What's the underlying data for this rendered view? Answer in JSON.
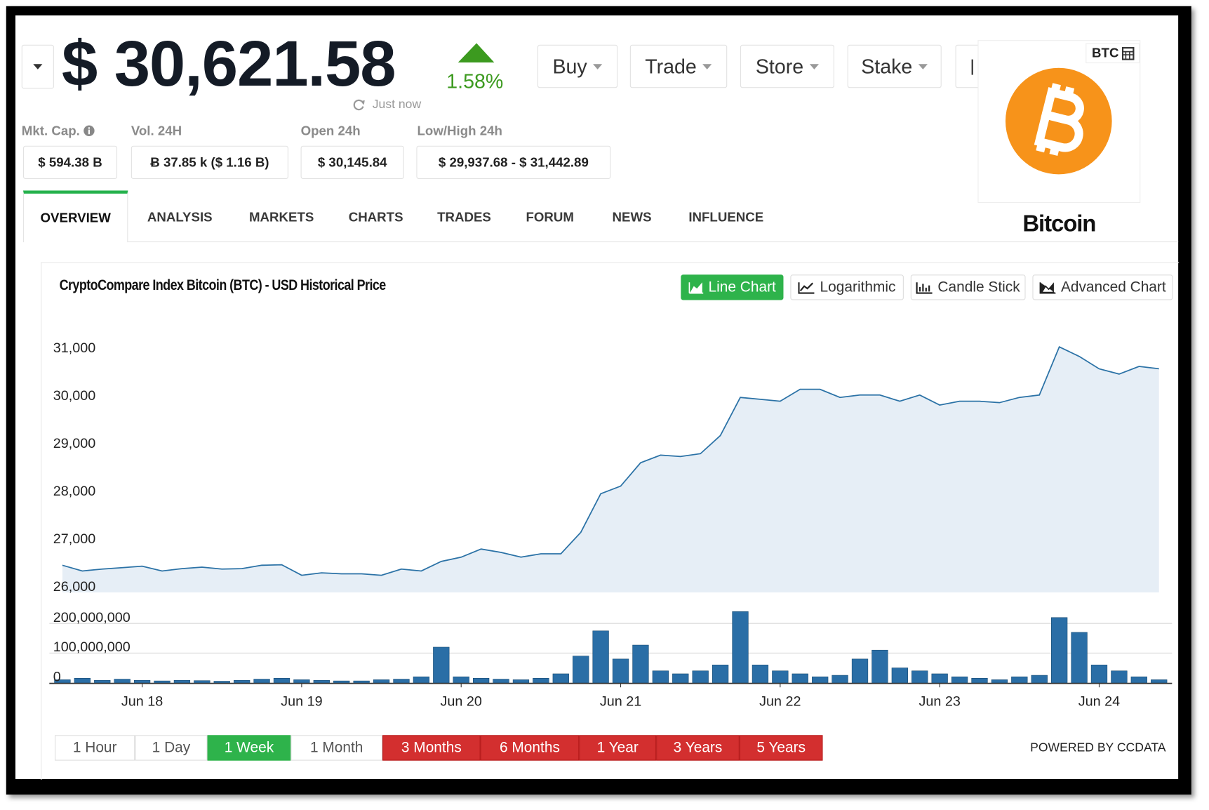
{
  "header": {
    "price": "$ 30,621.58",
    "change": "1.58%",
    "updated": "Just now",
    "actions": [
      "Buy",
      "Trade",
      "Store",
      "Stake"
    ]
  },
  "stats": [
    {
      "label": "Mkt. Cap.",
      "value": "$ 594.38 B"
    },
    {
      "label": "Vol. 24H",
      "value": "Ƀ 37.85 k ($ 1.16 B)"
    },
    {
      "label": "Open 24h",
      "value": "$ 30,145.84"
    },
    {
      "label": "Low/High 24h",
      "value": "$ 29,937.68 - $ 31,442.89"
    }
  ],
  "tabs": [
    "OVERVIEW",
    "ANALYSIS",
    "MARKETS",
    "CHARTS",
    "TRADES",
    "FORUM",
    "NEWS",
    "INFLUENCE"
  ],
  "coin": {
    "symbol": "BTC",
    "name": "Bitcoin"
  },
  "chart_modes": [
    "Line Chart",
    "Logarithmic",
    "Candle Stick",
    "Advanced Chart"
  ],
  "ranges": [
    "1 Hour",
    "1 Day",
    "1 Week",
    "1 Month",
    "3 Months",
    "6 Months",
    "1 Year",
    "3 Years",
    "5 Years"
  ],
  "powered_by": "POWERED BY CCDATA",
  "chart_data": [
    {
      "type": "area",
      "title": "CryptoCompare Index Bitcoin (BTC) - USD Historical Price",
      "color": "#2b72a6",
      "area_color": "#e6eef6",
      "grid": false,
      "values": [
        26440,
        26320,
        26360,
        26390,
        26420,
        26320,
        26370,
        26400,
        26360,
        26370,
        26440,
        26450,
        26230,
        26280,
        26260,
        26260,
        26230,
        26360,
        26320,
        26520,
        26610,
        26780,
        26710,
        26610,
        26680,
        26680,
        27130,
        27940,
        28100,
        28590,
        28750,
        28720,
        28780,
        29160,
        29960,
        29920,
        29880,
        30130,
        30130,
        29960,
        30010,
        30010,
        29880,
        30010,
        29800,
        29880,
        29880,
        29850,
        29960,
        30010,
        31020,
        30820,
        30560,
        30450,
        30610,
        30560
      ],
      "ylim": [
        25870,
        31500
      ],
      "yticks": [
        {
          "value": 26000,
          "label": "26,000"
        },
        {
          "value": 27000,
          "label": "27,000"
        },
        {
          "value": 28000,
          "label": "28,000"
        },
        {
          "value": 29000,
          "label": "29,000"
        },
        {
          "value": 30000,
          "label": "30,000"
        },
        {
          "value": 31000,
          "label": "31,000"
        }
      ]
    },
    {
      "type": "bar",
      "color": "#2a6ea6",
      "grid": true,
      "categories": [
        null,
        null,
        null,
        null,
        "Jun 18",
        null,
        null,
        null,
        null,
        null,
        null,
        null,
        "Jun 19",
        null,
        null,
        null,
        null,
        null,
        null,
        null,
        "Jun 20",
        null,
        null,
        null,
        null,
        null,
        null,
        null,
        "Jun 21",
        null,
        null,
        null,
        null,
        null,
        null,
        null,
        "Jun 22",
        null,
        null,
        null,
        null,
        null,
        null,
        null,
        "Jun 23",
        null,
        null,
        null,
        null,
        null,
        null,
        null,
        "Jun 24",
        null,
        null,
        null
      ],
      "values": [
        10000000,
        15000000,
        8000000,
        12000000,
        8000000,
        6000000,
        8000000,
        7000000,
        5000000,
        8000000,
        12000000,
        15000000,
        10000000,
        8000000,
        6000000,
        6000000,
        10000000,
        12000000,
        20000000,
        120000000,
        20000000,
        15000000,
        12000000,
        10000000,
        15000000,
        30000000,
        90000000,
        175000000,
        80000000,
        127000000,
        40000000,
        30000000,
        40000000,
        60000000,
        240000000,
        60000000,
        40000000,
        30000000,
        20000000,
        25000000,
        80000000,
        110000000,
        50000000,
        40000000,
        30000000,
        20000000,
        15000000,
        10000000,
        20000000,
        25000000,
        220000000,
        170000000,
        60000000,
        40000000,
        20000000,
        10000000
      ],
      "ylim": [
        0,
        250000000
      ],
      "yticks": [
        0,
        {
          "value": 100000000,
          "label": "100,000,000"
        },
        {
          "value": 200000000,
          "label": "200,000,000"
        }
      ]
    }
  ]
}
